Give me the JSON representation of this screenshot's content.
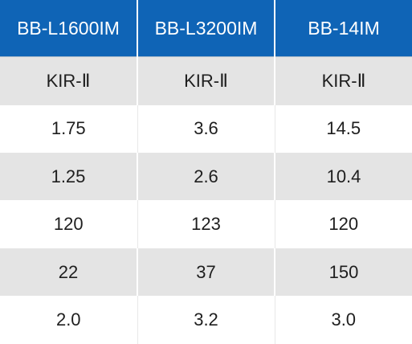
{
  "table": {
    "headers": [
      "BB-L1600IM",
      "BB-L3200IM",
      "BB-14IM"
    ],
    "rows": [
      [
        "KIR-Ⅱ",
        "KIR-Ⅱ",
        "KIR-Ⅱ"
      ],
      [
        "1.75",
        "3.6",
        "14.5"
      ],
      [
        "1.25",
        "2.6",
        "10.4"
      ],
      [
        "120",
        "123",
        "120"
      ],
      [
        "22",
        "37",
        "150"
      ],
      [
        "2.0",
        "3.2",
        "3.0"
      ]
    ]
  }
}
